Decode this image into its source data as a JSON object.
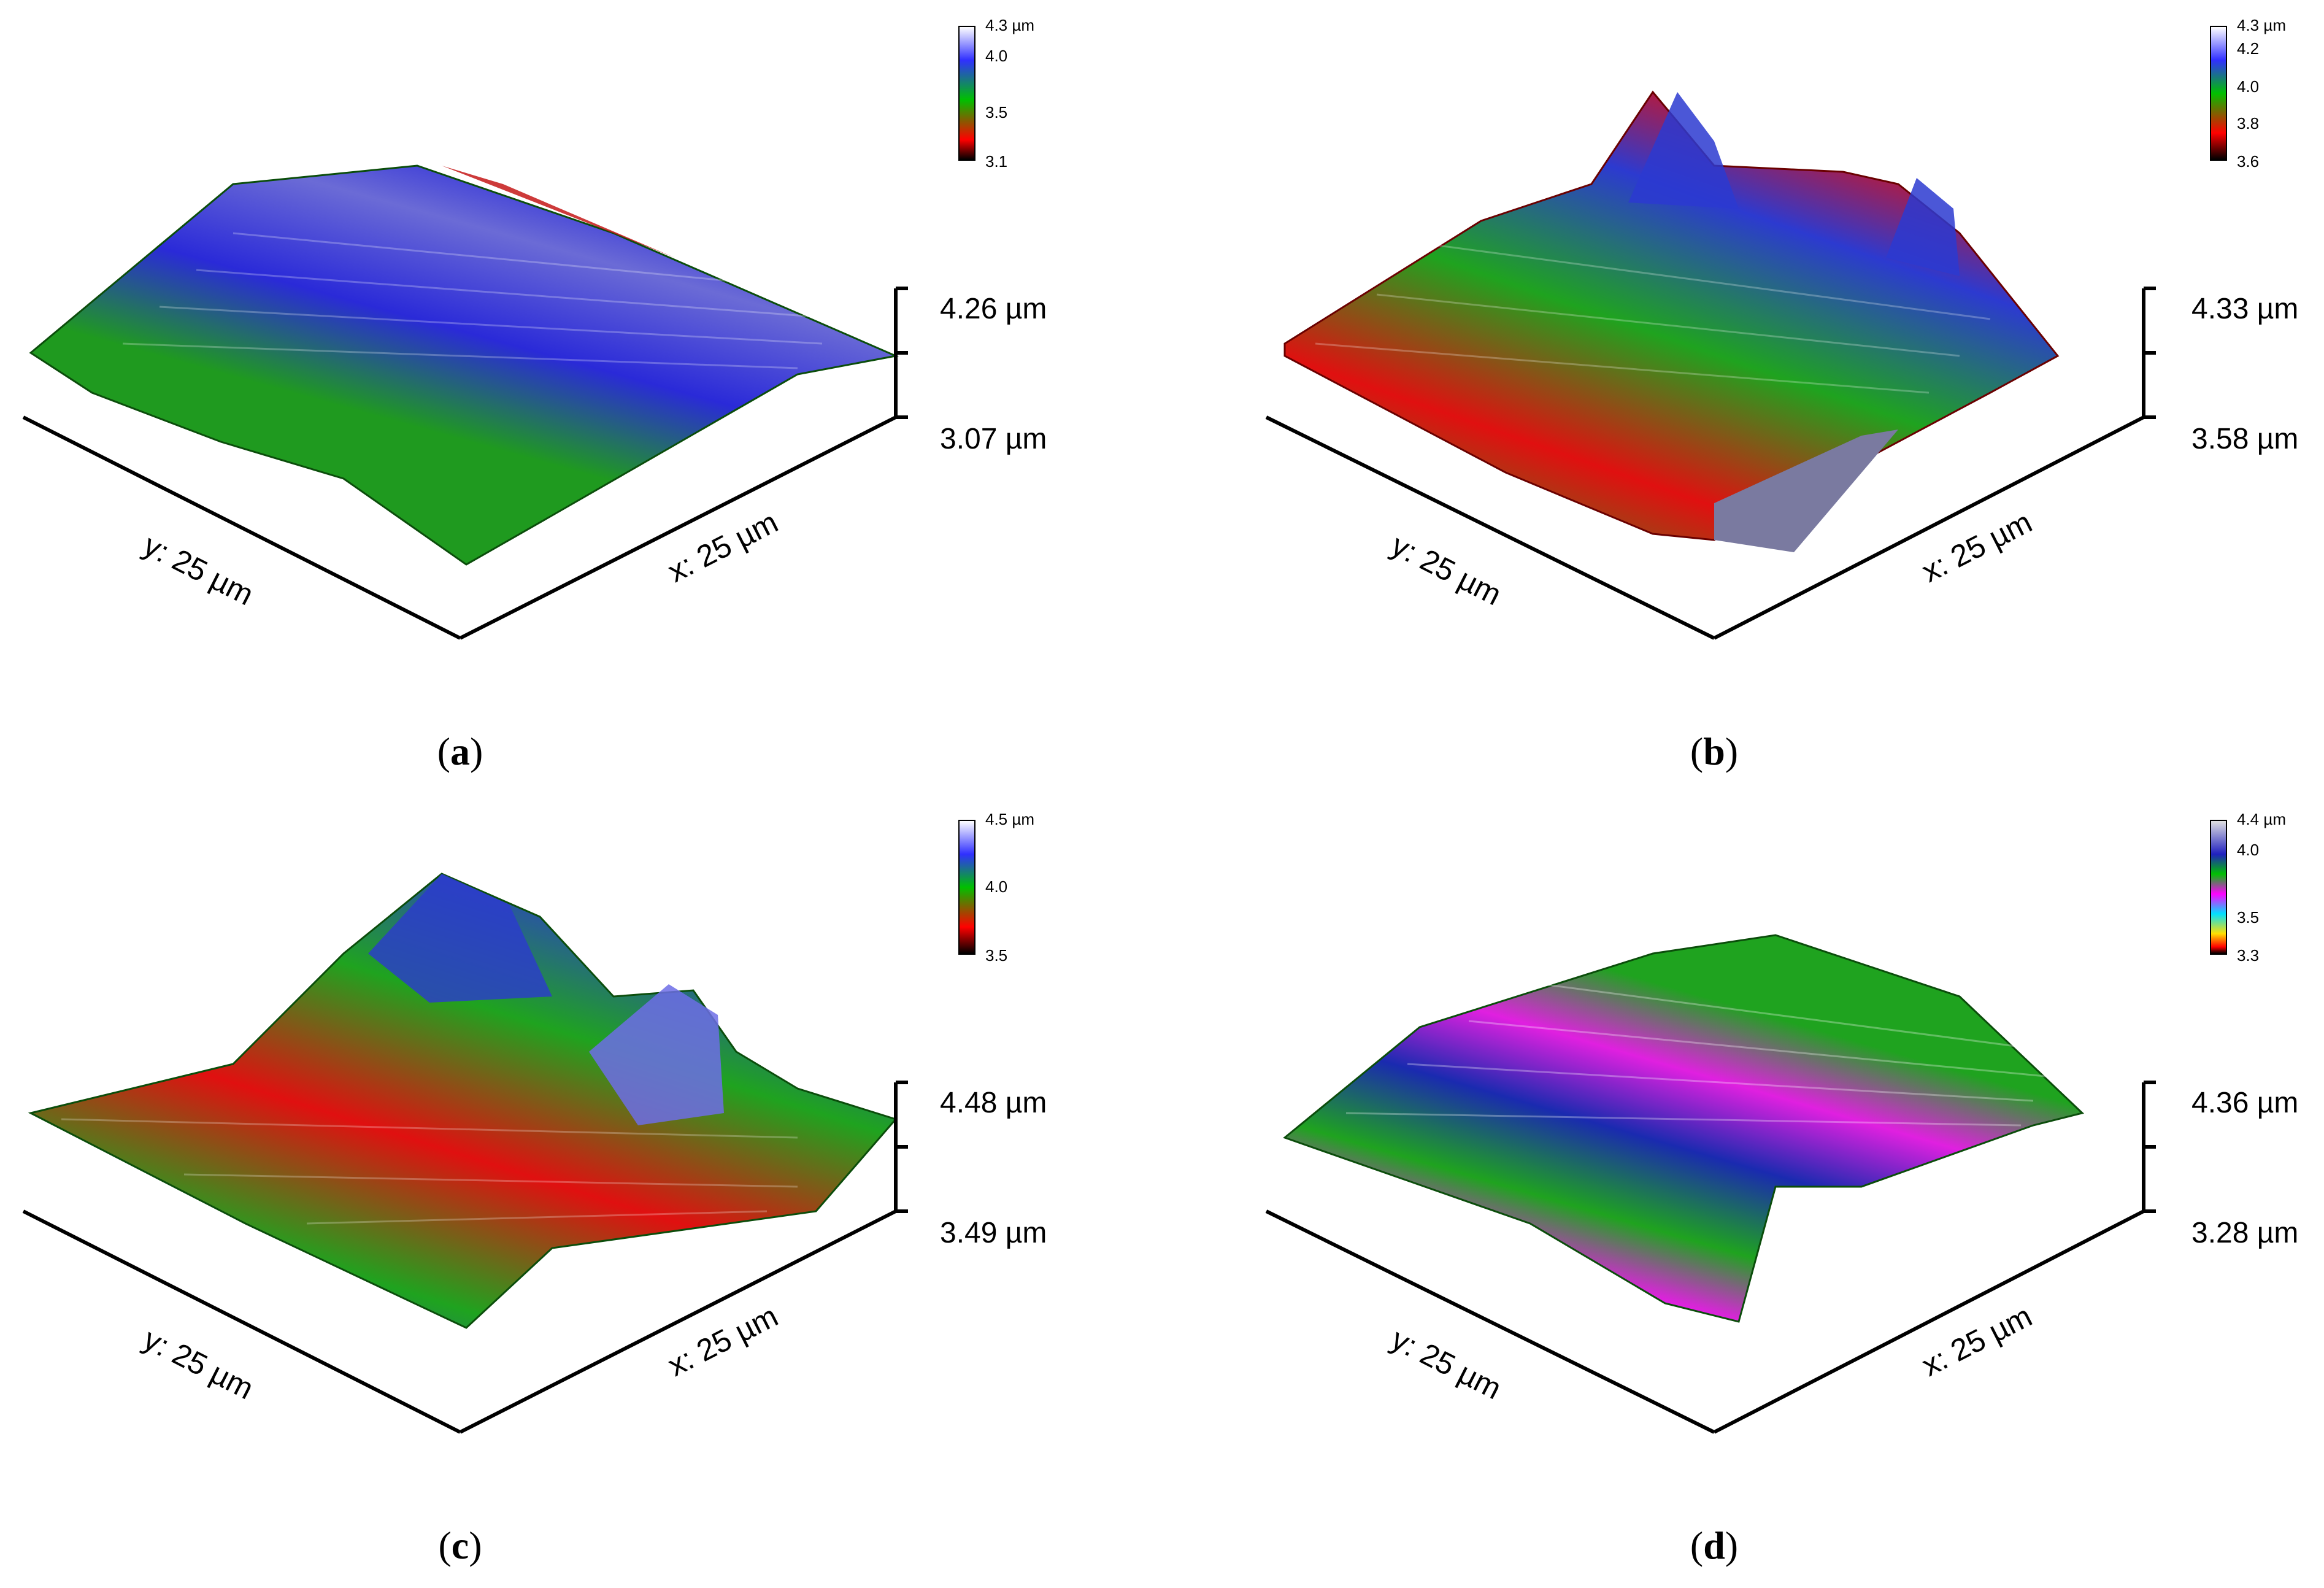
{
  "panels": [
    {
      "id": "a",
      "caption_letter": "a",
      "z_max_label": "4.26 µm",
      "z_min_label": "3.07 µm",
      "y_axis_label": "y: 25 µm",
      "x_axis_label": "x: 25 µm",
      "colorbar": {
        "labels": [
          "4.3 µm",
          "4.0",
          "3.5",
          "3.1"
        ],
        "colors": [
          "#ffffff",
          "#3030ff",
          "#00c000",
          "#ff0000",
          "#000000"
        ]
      },
      "surface_colors": [
        "#1f9a1f",
        "#2a2ad8",
        "#6b6bd6",
        "#c41818"
      ]
    },
    {
      "id": "b",
      "caption_letter": "b",
      "z_max_label": "4.33 µm",
      "z_min_label": "3.58 µm",
      "y_axis_label": "y: 25 µm",
      "x_axis_label": "x: 25 µm",
      "colorbar": {
        "labels": [
          "4.3 µm",
          "4.2",
          "4.0",
          "3.8",
          "3.6"
        ],
        "colors": [
          "#ffffff",
          "#3030ff",
          "#00c000",
          "#ff0000",
          "#000000"
        ]
      },
      "surface_colors": [
        "#1fa31f",
        "#e01010",
        "#2c3ad0",
        "#9a9ae8"
      ]
    },
    {
      "id": "c",
      "caption_letter": "c",
      "z_max_label": "4.48 µm",
      "z_min_label": "3.49 µm",
      "y_axis_label": "y: 25 µm",
      "x_axis_label": "x: 25 µm",
      "colorbar": {
        "labels": [
          "4.5 µm",
          "4.0",
          "3.5"
        ],
        "colors": [
          "#ffffff",
          "#3030ff",
          "#00c000",
          "#ff0000",
          "#000000"
        ]
      },
      "surface_colors": [
        "#1fa31f",
        "#e01010",
        "#2c3ad0",
        "#9a9ae8"
      ]
    },
    {
      "id": "d",
      "caption_letter": "d",
      "z_max_label": "4.36 µm",
      "z_min_label": "3.28 µm",
      "y_axis_label": "y: 25 µm",
      "x_axis_label": "x: 25 µm",
      "colorbar": {
        "labels": [
          "4.4 µm",
          "4.0",
          "3.5",
          "3.3"
        ],
        "colors": [
          "#e0e0e0",
          "#2020c0",
          "#00c000",
          "#ff00ff",
          "#00e0ff",
          "#ffe000",
          "#ff0000",
          "#000000"
        ]
      },
      "surface_colors": [
        "#1fa31f",
        "#e020e0",
        "#1a2ab0",
        "#10d0e0"
      ]
    }
  ]
}
